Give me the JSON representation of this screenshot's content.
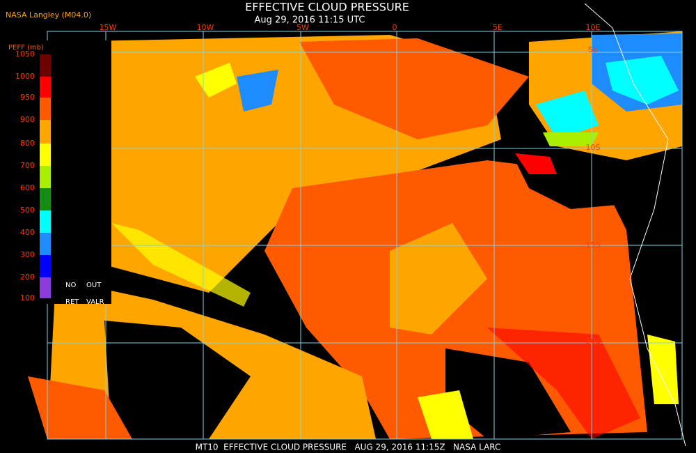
{
  "header": {
    "source": "NASA Langley (M04.0)",
    "title": "EFFECTIVE CLOUD PRESSURE",
    "subtitle": "Aug 29, 2016 11:15 UTC"
  },
  "map": {
    "longitude_labels": [
      "15W",
      "10W",
      "5W",
      "0",
      "5E",
      "10E"
    ],
    "latitude_labels": [
      "5S",
      "10S",
      "15S",
      "20S"
    ]
  },
  "colorbar": {
    "title": "PEFF (mb)",
    "ticks": [
      1050,
      1000,
      950,
      900,
      800,
      700,
      600,
      500,
      400,
      300,
      200,
      100
    ],
    "colors": [
      "#6e0000",
      "#ff0000",
      "#ff5a00",
      "#ffa500",
      "#ffff00",
      "#aaee00",
      "#128c12",
      "#00ffff",
      "#1e8cff",
      "#0000ff",
      "#8c3cdc"
    ],
    "no_ret": "NO",
    "out_valr": "OUT",
    "ret": "RET",
    "valr": "VALR"
  },
  "footer": "MT10  EFFECTIVE CLOUD PRESSURE   AUG 29, 2016 11:15Z   NASA LARC"
}
